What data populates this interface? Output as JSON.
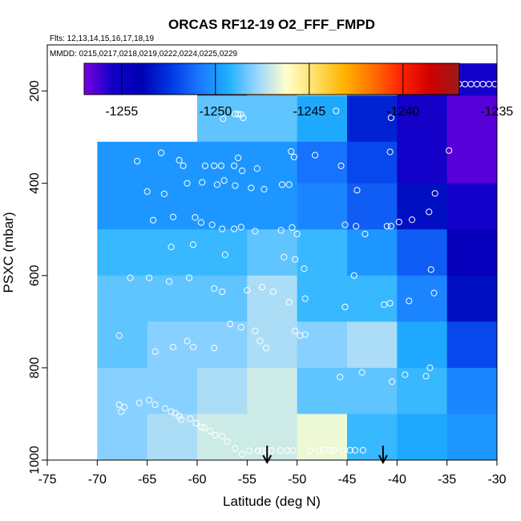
{
  "chart_data": {
    "type": "heatmap",
    "title": "ORCAS RF12-19 O2_FFF_FMPD",
    "subtitle_flights": "Flts: 12,13,14,15,16,17,18,19",
    "subtitle_dates": "MMDD: 0215,0217,0218,0219,0222,0224,0225,0229",
    "xlabel": "Latitude (deg N)",
    "ylabel": "PSXC (mbar)",
    "xlim": [
      -75,
      -30
    ],
    "ylim": [
      1000,
      100
    ],
    "x_ticks": [
      -75,
      -70,
      -65,
      -60,
      -55,
      -50,
      -45,
      -40,
      -35,
      -30
    ],
    "y_ticks": [
      200,
      400,
      600,
      800,
      1000
    ],
    "colorbar": {
      "range": [
        -1257,
        -1237
      ],
      "ticks": [
        -1255,
        -1250,
        -1245,
        -1240,
        -1235
      ],
      "tick_labels": [
        "-1255",
        "-1250",
        "-1245",
        "-1240",
        "-1235"
      ]
    },
    "x_bins": [
      -70,
      -65,
      -60,
      -55,
      -50,
      -45,
      -40,
      -35,
      -30
    ],
    "y_bins": [
      140,
      210,
      310,
      400,
      500,
      600,
      700,
      800,
      900,
      1000
    ],
    "cells": [
      [
        null,
        null,
        -1236.5,
        -1242,
        -1246,
        -1248.5,
        -1253,
        -1255.5
      ],
      [
        null,
        null,
        -1248.5,
        -1248.5,
        -1249.5,
        -1253,
        -1255.5,
        -1256.5
      ],
      [
        -1250,
        -1250,
        -1250,
        -1250,
        -1251,
        -1252,
        -1255.5,
        -1256.5
      ],
      [
        -1250,
        -1250,
        -1250,
        -1250,
        -1250.5,
        -1251.5,
        -1253.5,
        -1255.5
      ],
      [
        -1249,
        -1249,
        -1249,
        -1248.5,
        -1249,
        -1250,
        -1251.5,
        -1254.5
      ],
      [
        -1248.5,
        -1248.5,
        -1248.5,
        -1247.5,
        -1249,
        -1249,
        -1250.5,
        -1253.5
      ],
      [
        -1248.5,
        -1248,
        -1248,
        -1247.5,
        -1248,
        -1247.5,
        -1249.5,
        -1252
      ],
      [
        -1248,
        -1248,
        -1247.5,
        -1247,
        -1248.5,
        -1248.5,
        -1249,
        -1250.5
      ],
      [
        -1248,
        -1247.5,
        -1247,
        -1247,
        -1246.5,
        -1249,
        -1249.5,
        -1250
      ],
      [
        -1248,
        -1247.5,
        -1247,
        -1246.5,
        -1248,
        -1249,
        -1249,
        -1249.5
      ]
    ],
    "points": [
      [
        -62.3,
        183
      ],
      [
        -61.8,
        180
      ],
      [
        -60,
        182
      ],
      [
        -58.5,
        183
      ],
      [
        -57.5,
        183
      ],
      [
        -56.5,
        183
      ],
      [
        -53.5,
        183
      ],
      [
        -52.5,
        182
      ],
      [
        -51.5,
        183
      ],
      [
        -50,
        183
      ],
      [
        -49,
        185
      ],
      [
        -48.2,
        185
      ],
      [
        -47.6,
        185
      ],
      [
        -46.8,
        185
      ],
      [
        -34.8,
        195
      ],
      [
        -34.3,
        185
      ],
      [
        -33.8,
        185
      ],
      [
        -33.2,
        185
      ],
      [
        -32.6,
        185
      ],
      [
        -32,
        185
      ],
      [
        -31.4,
        185
      ],
      [
        -30.8,
        185
      ],
      [
        -30.2,
        185
      ],
      [
        -62.7,
        266
      ],
      [
        -62.2,
        253
      ],
      [
        -61.8,
        242
      ],
      [
        -57.4,
        260
      ],
      [
        -56.2,
        250
      ],
      [
        -55.9,
        250
      ],
      [
        -55.6,
        251
      ],
      [
        -55.4,
        258
      ],
      [
        -46.1,
        243
      ],
      [
        -40.6,
        258
      ],
      [
        -66,
        352
      ],
      [
        -63.6,
        334
      ],
      [
        -61.8,
        350
      ],
      [
        -61.4,
        362
      ],
      [
        -59.2,
        362
      ],
      [
        -58.3,
        362
      ],
      [
        -57.6,
        362
      ],
      [
        -56.3,
        362
      ],
      [
        -55.9,
        345
      ],
      [
        -55.5,
        373
      ],
      [
        -54,
        368
      ],
      [
        -50.6,
        331
      ],
      [
        -50.3,
        343
      ],
      [
        -48.2,
        339
      ],
      [
        -45.6,
        362
      ],
      [
        -40.7,
        332
      ],
      [
        -34.8,
        329
      ],
      [
        -65,
        418
      ],
      [
        -63.3,
        423
      ],
      [
        -61,
        400
      ],
      [
        -59.5,
        398
      ],
      [
        -58,
        403
      ],
      [
        -57.3,
        394
      ],
      [
        -56.2,
        405
      ],
      [
        -54.6,
        410
      ],
      [
        -53.3,
        413
      ],
      [
        -51.5,
        403
      ],
      [
        -50.8,
        403
      ],
      [
        -44,
        415
      ],
      [
        -36.2,
        422
      ],
      [
        -64.4,
        480
      ],
      [
        -62.4,
        473
      ],
      [
        -60.2,
        474
      ],
      [
        -59.6,
        485
      ],
      [
        -58.5,
        490
      ],
      [
        -57.5,
        499
      ],
      [
        -56.3,
        499
      ],
      [
        -55.6,
        495
      ],
      [
        -54.2,
        504
      ],
      [
        -51.6,
        502
      ],
      [
        -50.5,
        496
      ],
      [
        -50,
        510
      ],
      [
        -45.2,
        490
      ],
      [
        -44.1,
        493
      ],
      [
        -43.2,
        510
      ],
      [
        -41,
        493
      ],
      [
        -40.6,
        493
      ],
      [
        -39.8,
        484
      ],
      [
        -38.5,
        479
      ],
      [
        -36.8,
        462
      ],
      [
        -62.6,
        538
      ],
      [
        -60.4,
        533
      ],
      [
        -57.2,
        555
      ],
      [
        -51.3,
        560
      ],
      [
        -50.2,
        565
      ],
      [
        -49.3,
        585
      ],
      [
        -44.3,
        600
      ],
      [
        -36.6,
        587
      ],
      [
        -66.7,
        605
      ],
      [
        -64.8,
        605
      ],
      [
        -62.8,
        613
      ],
      [
        -60.8,
        605
      ],
      [
        -58.3,
        628
      ],
      [
        -57.5,
        635
      ],
      [
        -55,
        632
      ],
      [
        -53.5,
        625
      ],
      [
        -52.4,
        635
      ],
      [
        -50.8,
        658
      ],
      [
        -49.2,
        650
      ],
      [
        -45.2,
        668
      ],
      [
        -41.3,
        663
      ],
      [
        -40.7,
        660
      ],
      [
        -38.8,
        655
      ],
      [
        -36.3,
        638
      ],
      [
        -67.8,
        730
      ],
      [
        -64.2,
        765
      ],
      [
        -62.4,
        755
      ],
      [
        -61,
        742
      ],
      [
        -60.4,
        755
      ],
      [
        -58.3,
        757
      ],
      [
        -56.7,
        705
      ],
      [
        -55.6,
        712
      ],
      [
        -54.2,
        720
      ],
      [
        -53.7,
        742
      ],
      [
        -53.1,
        757
      ],
      [
        -50.2,
        720
      ],
      [
        -49.7,
        730
      ],
      [
        -49.2,
        728
      ],
      [
        -45.7,
        820
      ],
      [
        -43.5,
        810
      ],
      [
        -40.5,
        830
      ],
      [
        -39.2,
        815
      ],
      [
        -37.1,
        818
      ],
      [
        -36.7,
        800
      ],
      [
        -67.8,
        880
      ],
      [
        -67.3,
        885
      ],
      [
        -67.6,
        895
      ],
      [
        -65.8,
        876
      ],
      [
        -64.8,
        870
      ],
      [
        -64.2,
        880
      ],
      [
        -63.2,
        888
      ],
      [
        -62.6,
        895
      ],
      [
        -62.2,
        898
      ],
      [
        -61.8,
        905
      ],
      [
        -61.6,
        912
      ],
      [
        -60.7,
        910
      ],
      [
        -60.1,
        920
      ],
      [
        -59.6,
        928
      ],
      [
        -59.3,
        930
      ],
      [
        -58.7,
        937
      ],
      [
        -58.2,
        946
      ],
      [
        -57.5,
        948
      ],
      [
        -57,
        960
      ],
      [
        -56.2,
        975
      ],
      [
        -55.5,
        987
      ],
      [
        -54.8,
        1003
      ],
      [
        -53.9,
        1010
      ],
      [
        -53.5,
        1024
      ],
      [
        -53.1,
        1030
      ],
      [
        -52.6,
        1050
      ],
      [
        -51.7,
        1058
      ],
      [
        -51,
        1074
      ],
      [
        -50.4,
        1085
      ],
      [
        -48.7,
        1093
      ],
      [
        -47.8,
        1097
      ],
      [
        -47.3,
        1103
      ],
      [
        -46.6,
        1109
      ],
      [
        -46.3,
        1114
      ],
      [
        -45.4,
        1120
      ],
      [
        -44.7,
        1124
      ],
      [
        -44.2,
        1128
      ],
      [
        -43.4,
        1131
      ]
    ],
    "point_color": "#ffffff",
    "arrows_x": [
      -53,
      -41.4
    ],
    "colormap": [
      "#7a00e0",
      "#1000c8",
      "#0000b4",
      "#0038e6",
      "#1a78ff",
      "#1fb0ff",
      "#9ad6ff",
      "#ffffcc",
      "#ffe066",
      "#ffb400",
      "#ff7000",
      "#ff2200",
      "#d00000",
      "#9c1a1a"
    ]
  }
}
